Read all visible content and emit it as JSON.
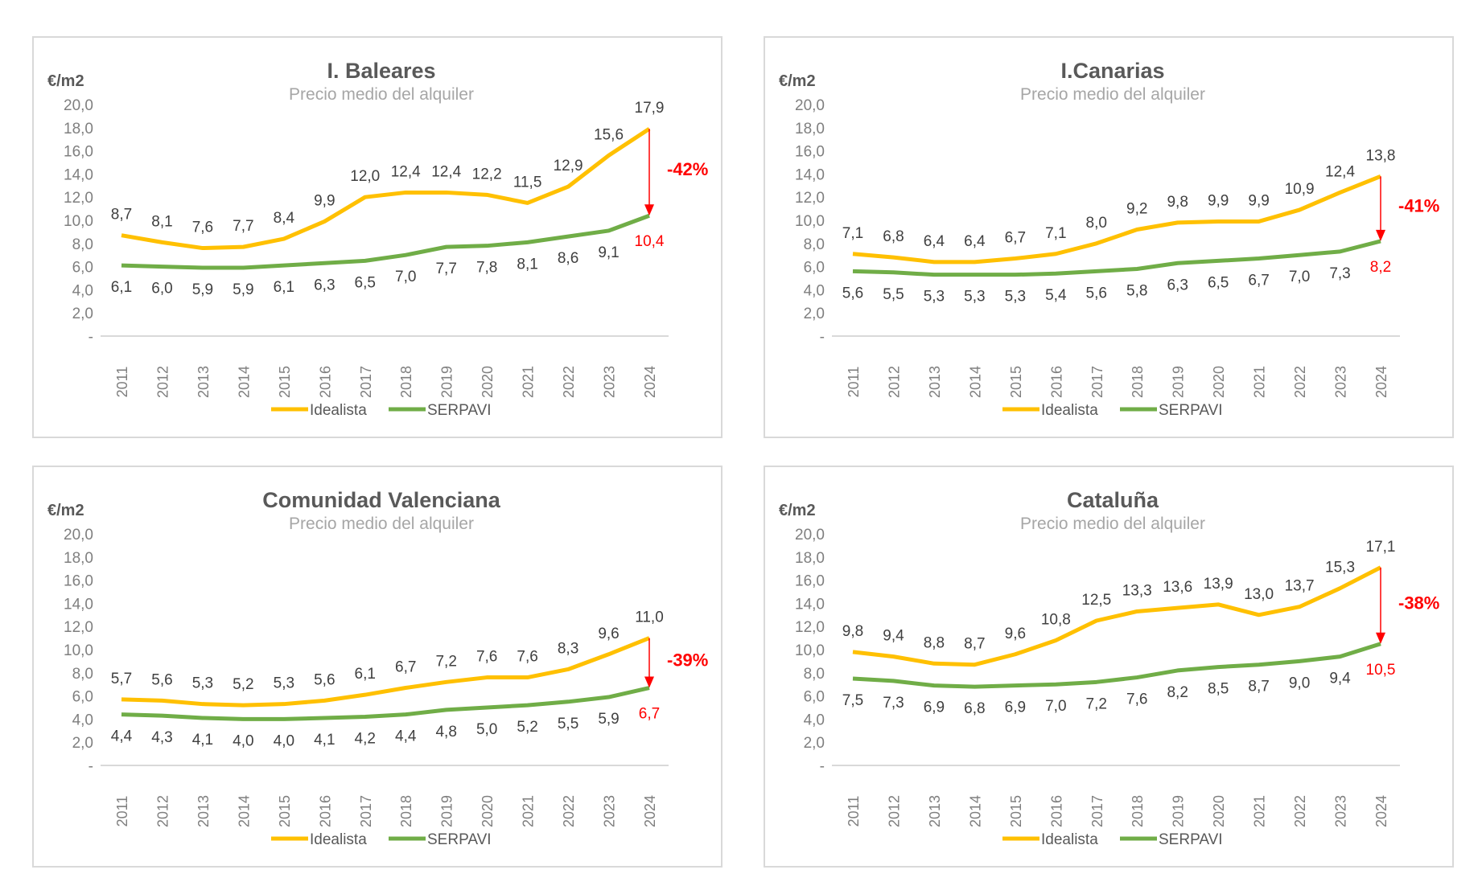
{
  "chart_data": [
    {
      "type": "line",
      "title": "I. Baleares",
      "subtitle": "Precio medio del alquiler",
      "ylabel": "€/m2",
      "ylim": [
        0,
        20
      ],
      "yticks": [
        "-",
        "2,0",
        "4,0",
        "6,0",
        "8,0",
        "10,0",
        "12,0",
        "14,0",
        "16,0",
        "18,0",
        "20,0"
      ],
      "categories": [
        "2011",
        "2012",
        "2013",
        "2014",
        "2015",
        "2016",
        "2017",
        "2018",
        "2019",
        "2020",
        "2021",
        "2022",
        "2023",
        "2024"
      ],
      "series": [
        {
          "name": "Idealista",
          "color": "#FFC000",
          "values": [
            8.7,
            8.1,
            7.6,
            7.7,
            8.4,
            9.9,
            12.0,
            12.4,
            12.4,
            12.2,
            11.5,
            12.9,
            15.6,
            17.9
          ]
        },
        {
          "name": "SERPAVI",
          "color": "#70AD47",
          "values": [
            6.1,
            6.0,
            5.9,
            5.9,
            6.1,
            6.3,
            6.5,
            7.0,
            7.7,
            7.8,
            8.1,
            8.6,
            9.1,
            10.4
          ]
        }
      ],
      "annotation": "-42%",
      "legend": "bottom",
      "grid": false
    },
    {
      "type": "line",
      "title": "I.Canarias",
      "subtitle": "Precio medio del alquiler",
      "ylabel": "€/m2",
      "ylim": [
        0,
        20
      ],
      "yticks": [
        "-",
        "2,0",
        "4,0",
        "6,0",
        "8,0",
        "10,0",
        "12,0",
        "14,0",
        "16,0",
        "18,0",
        "20,0"
      ],
      "categories": [
        "2011",
        "2012",
        "2013",
        "2014",
        "2015",
        "2016",
        "2017",
        "2018",
        "2019",
        "2020",
        "2021",
        "2022",
        "2023",
        "2024"
      ],
      "series": [
        {
          "name": "Idealista",
          "color": "#FFC000",
          "values": [
            7.1,
            6.8,
            6.4,
            6.4,
            6.7,
            7.1,
            8.0,
            9.2,
            9.8,
            9.9,
            9.9,
            10.9,
            12.4,
            13.8
          ]
        },
        {
          "name": "SERPAVI",
          "color": "#70AD47",
          "values": [
            5.6,
            5.5,
            5.3,
            5.3,
            5.3,
            5.4,
            5.6,
            5.8,
            6.3,
            6.5,
            6.7,
            7.0,
            7.3,
            8.2
          ]
        }
      ],
      "annotation": "-41%",
      "legend": "bottom",
      "grid": false
    },
    {
      "type": "line",
      "title": "Comunidad Valenciana",
      "subtitle": "Precio medio del alquiler",
      "ylabel": "€/m2",
      "ylim": [
        0,
        20
      ],
      "yticks": [
        "-",
        "2,0",
        "4,0",
        "6,0",
        "8,0",
        "10,0",
        "12,0",
        "14,0",
        "16,0",
        "18,0",
        "20,0"
      ],
      "categories": [
        "2011",
        "2012",
        "2013",
        "2014",
        "2015",
        "2016",
        "2017",
        "2018",
        "2019",
        "2020",
        "2021",
        "2022",
        "2023",
        "2024"
      ],
      "series": [
        {
          "name": "Idealista",
          "color": "#FFC000",
          "values": [
            5.7,
            5.6,
            5.3,
            5.2,
            5.3,
            5.6,
            6.1,
            6.7,
            7.2,
            7.6,
            7.6,
            8.3,
            9.6,
            11.0
          ]
        },
        {
          "name": "SERPAVI",
          "color": "#70AD47",
          "values": [
            4.4,
            4.3,
            4.1,
            4.0,
            4.0,
            4.1,
            4.2,
            4.4,
            4.8,
            5.0,
            5.2,
            5.5,
            5.9,
            6.7
          ]
        }
      ],
      "annotation": "-39%",
      "legend": "bottom",
      "grid": false
    },
    {
      "type": "line",
      "title": "Cataluña",
      "subtitle": "Precio medio del alquiler",
      "ylabel": "€/m2",
      "ylim": [
        0,
        20
      ],
      "yticks": [
        "-",
        "2,0",
        "4,0",
        "6,0",
        "8,0",
        "10,0",
        "12,0",
        "14,0",
        "16,0",
        "18,0",
        "20,0"
      ],
      "categories": [
        "2011",
        "2012",
        "2013",
        "2014",
        "2015",
        "2016",
        "2017",
        "2018",
        "2019",
        "2020",
        "2021",
        "2022",
        "2023",
        "2024"
      ],
      "series": [
        {
          "name": "Idealista",
          "color": "#FFC000",
          "values": [
            9.8,
            9.4,
            8.8,
            8.7,
            9.6,
            10.8,
            12.5,
            13.3,
            13.6,
            13.9,
            13.0,
            13.7,
            15.3,
            17.1
          ]
        },
        {
          "name": "SERPAVI",
          "color": "#70AD47",
          "values": [
            7.5,
            7.3,
            6.9,
            6.8,
            6.9,
            7.0,
            7.2,
            7.6,
            8.2,
            8.5,
            8.7,
            9.0,
            9.4,
            10.5
          ]
        }
      ],
      "annotation": "-38%",
      "legend": "bottom",
      "grid": false
    }
  ],
  "colors": {
    "annotation": "#FF0000",
    "axis_text": "#7f7f7f",
    "label_text": "#404040"
  }
}
